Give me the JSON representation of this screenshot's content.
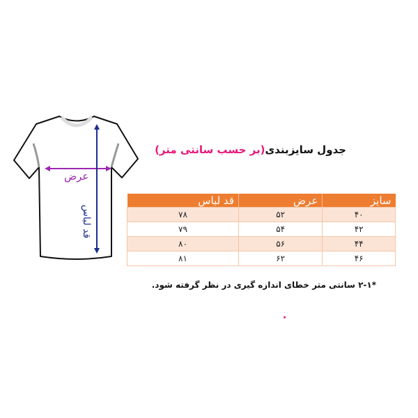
{
  "title": {
    "main": "جدول سایزبندی",
    "unit": "(بر حسب سانتی متر)"
  },
  "diagram": {
    "width_label": "عرض",
    "length_label": "قد لباس"
  },
  "table": {
    "headers": [
      "سایز",
      "عرض",
      "قد لباس"
    ],
    "rows": [
      [
        "۴۰",
        "۵۲",
        "۷۸"
      ],
      [
        "۴۲",
        "۵۴",
        "۷۹"
      ],
      [
        "۴۴",
        "۵۶",
        "۸۰"
      ],
      [
        "۴۶",
        "۶۲",
        "۸۱"
      ]
    ]
  },
  "note": "*۲-۱ سانتی متر خطای اندازه گیری در نظر گرفته شود.",
  "colors": {
    "header": "#ed7d31",
    "row_alt": "#fbe4d6",
    "accent_pink": "#e6197a",
    "width_arrow": "#9c27b0",
    "length_arrow": "#1a2e8c"
  }
}
